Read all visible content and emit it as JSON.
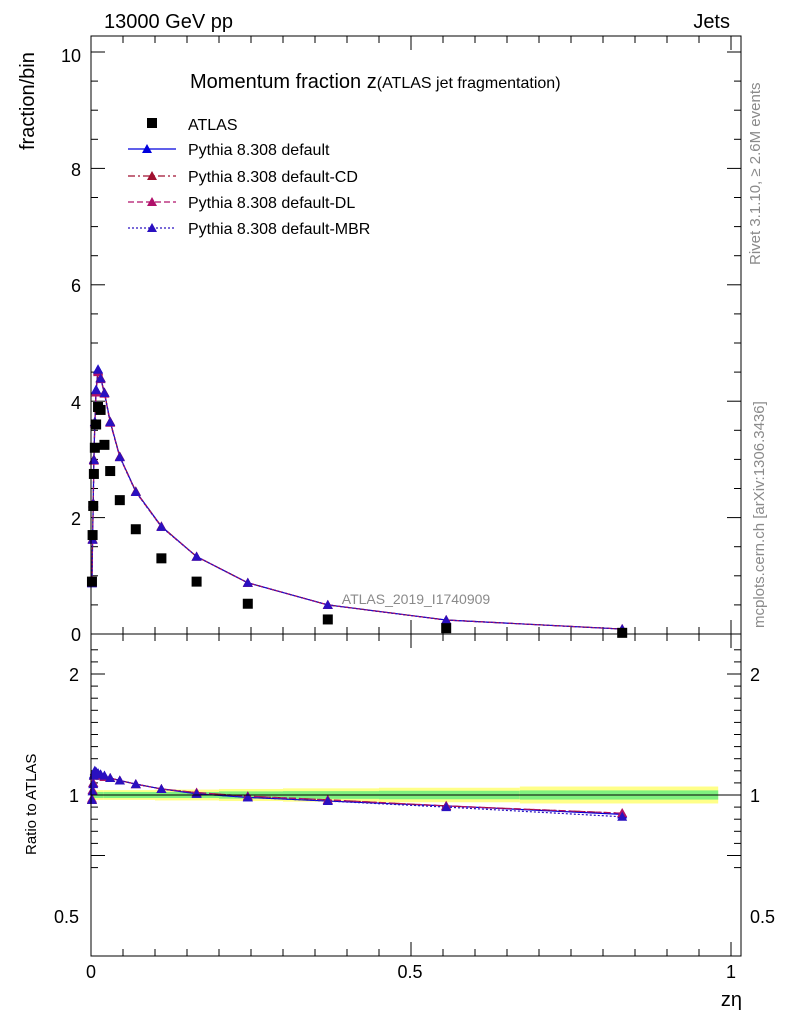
{
  "header": {
    "energy_label": "13000 GeV pp",
    "category_label": "Jets",
    "side_label_top": "Rivet 3.1.10, ≥ 2.6M events",
    "side_label_bottom": "mcplots.cern.ch [arXiv:1306.3436]"
  },
  "chart_data": {
    "type": "scatter",
    "title_main": "Momentum fraction z",
    "title_sub": "(ATLAS jet fragmentation)",
    "analysis_label": "ATLAS_2019_I1740909",
    "ylabel": "fraction/bin",
    "ratio_ylabel": "Ratio to ATLAS",
    "xlabel": "zη",
    "xlim": [
      0,
      1
    ],
    "ylim": [
      0,
      10
    ],
    "ratio_ylim": [
      0.3,
      2.3
    ],
    "x_ticks": [
      "0",
      "0.5",
      "1"
    ],
    "y_ticks": [
      "0",
      "2",
      "4",
      "6",
      "8",
      "10"
    ],
    "ratio_ticks": [
      "0.5",
      "1",
      "2"
    ],
    "legend_position": "top-left",
    "x": [
      0.0015,
      0.0025,
      0.0035,
      0.0045,
      0.006,
      0.008,
      0.011,
      0.015,
      0.021,
      0.03,
      0.045,
      0.07,
      0.11,
      0.165,
      0.245,
      0.37,
      0.555,
      0.83
    ],
    "data": {
      "name": "ATLAS",
      "color": "#000000",
      "values": [
        0.9,
        1.7,
        2.2,
        2.75,
        3.2,
        3.6,
        3.9,
        3.85,
        3.25,
        2.8,
        2.3,
        1.8,
        1.3,
        0.9,
        0.52,
        0.25,
        0.1,
        0.02
      ]
    },
    "series": [
      {
        "name": "Pythia 8.308 default",
        "color": "#0000dd",
        "dash": "",
        "values": [
          0.88,
          1.63,
          2.25,
          3.0,
          3.65,
          4.2,
          4.55,
          4.4,
          4.15,
          3.65,
          3.05,
          2.45,
          1.85,
          1.33,
          0.88,
          0.5,
          0.24,
          0.085
        ]
      },
      {
        "name": "Pythia 8.308 default-CD",
        "color": "#a01030",
        "dash": "7,3,2,3",
        "values": [
          0.88,
          1.63,
          2.25,
          3.0,
          3.64,
          4.18,
          4.52,
          4.4,
          4.15,
          3.65,
          3.05,
          2.45,
          1.85,
          1.33,
          0.88,
          0.5,
          0.24,
          0.085
        ]
      },
      {
        "name": "Pythia 8.308 default-DL",
        "color": "#b0106a",
        "dash": "6,3",
        "values": [
          0.88,
          1.62,
          2.24,
          2.98,
          3.62,
          4.15,
          4.5,
          4.38,
          4.13,
          3.63,
          3.04,
          2.44,
          1.84,
          1.33,
          0.88,
          0.5,
          0.24,
          0.085
        ]
      },
      {
        "name": "Pythia 8.308 default-MBR",
        "color": "#2a10c0",
        "dash": "2,2",
        "values": [
          0.87,
          1.62,
          2.24,
          2.99,
          3.64,
          4.19,
          4.54,
          4.39,
          4.14,
          3.64,
          3.04,
          2.44,
          1.84,
          1.33,
          0.88,
          0.5,
          0.24,
          0.084
        ]
      }
    ],
    "ratio_series": [
      {
        "name": "Pythia 8.308 default",
        "values": [
          0.96,
          1.04,
          1.1,
          1.17,
          1.2,
          1.19,
          1.18,
          1.17,
          1.16,
          1.14,
          1.12,
          1.09,
          1.05,
          1.01,
          0.98,
          0.95,
          0.91,
          0.84
        ]
      },
      {
        "name": "Pythia 8.308 default-CD",
        "values": [
          0.96,
          1.04,
          1.1,
          1.16,
          1.19,
          1.18,
          1.17,
          1.16,
          1.15,
          1.14,
          1.12,
          1.09,
          1.05,
          1.02,
          0.99,
          0.96,
          0.91,
          0.85
        ]
      },
      {
        "name": "Pythia 8.308 default-DL",
        "values": [
          0.97,
          1.04,
          1.1,
          1.16,
          1.19,
          1.18,
          1.17,
          1.16,
          1.15,
          1.14,
          1.12,
          1.09,
          1.05,
          1.02,
          0.99,
          0.96,
          0.91,
          0.85
        ]
      },
      {
        "name": "Pythia 8.308 default-MBR",
        "values": [
          0.96,
          1.03,
          1.09,
          1.16,
          1.2,
          1.19,
          1.18,
          1.17,
          1.16,
          1.14,
          1.12,
          1.09,
          1.05,
          1.01,
          0.98,
          0.95,
          0.9,
          0.82
        ]
      }
    ],
    "uncertainty_bands": {
      "inner_color": "#7ff07f",
      "outer_color": "#ffff88",
      "edges": [
        0,
        0.02,
        0.05,
        0.1,
        0.2,
        0.3,
        0.45,
        0.67,
        0.98
      ],
      "inner": [
        0.025,
        0.025,
        0.025,
        0.025,
        0.03,
        0.032,
        0.035,
        0.038
      ],
      "outer": [
        0.04,
        0.04,
        0.04,
        0.045,
        0.05,
        0.055,
        0.06,
        0.07
      ]
    }
  }
}
